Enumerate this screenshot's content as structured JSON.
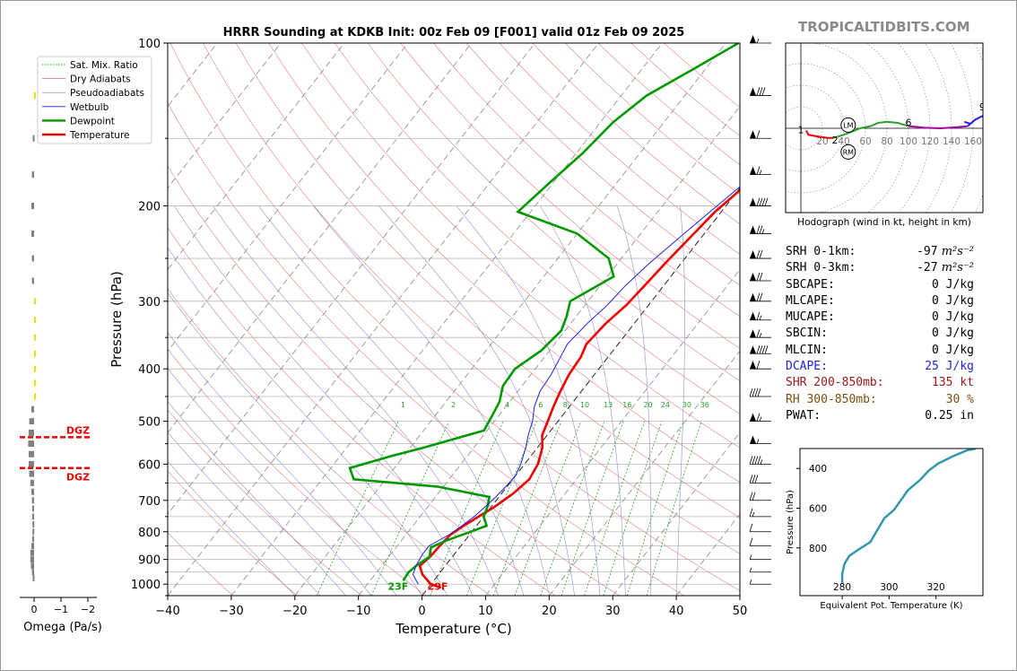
{
  "chart_data": [
    {
      "type": "skew-t",
      "title": "HRRR Sounding at KDKB Init: 00z Feb 09 [F001] valid 01z Feb 09 2025",
      "xlabel": "Temperature (°C)",
      "ylabel": "Pressure (hPa)",
      "xlim": [
        -40,
        50
      ],
      "ylim": [
        1050,
        100
      ],
      "log_y": true,
      "grid": true,
      "xticks": [
        -40,
        -30,
        -20,
        -10,
        0,
        10,
        20,
        30,
        40,
        50
      ],
      "yticks": [
        100,
        200,
        300,
        400,
        500,
        600,
        700,
        800,
        900,
        1000
      ],
      "legend": {
        "placement": "top-left",
        "entries": [
          {
            "name": "Sat. Mix. Ratio",
            "color": "#2ca02c",
            "style": "dotted"
          },
          {
            "name": "Dry Adiabats",
            "color": "#e08080",
            "style": "solid"
          },
          {
            "name": "Pseudoadiabats",
            "color": "#a0a0a0",
            "style": "solid"
          },
          {
            "name": "Wetbulb",
            "color": "#1f1fe0",
            "style": "solid"
          },
          {
            "name": "Dewpoint",
            "color": "#009900",
            "style": "solid"
          },
          {
            "name": "Temperature",
            "color": "#ee0000",
            "style": "solid"
          }
        ]
      },
      "mixing_ratio_labels": [
        "1",
        "2",
        "4",
        "6",
        "8",
        "10",
        "13",
        "16",
        "20",
        "24",
        "30",
        "36"
      ],
      "series": [
        {
          "name": "Temperature",
          "points": [
            [
              1015,
              2
            ],
            [
              1000,
              0
            ],
            [
              960,
              -2.5
            ],
            [
              925,
              -4
            ],
            [
              890,
              -3.5
            ],
            [
              850,
              -3.3
            ],
            [
              810,
              -3
            ],
            [
              780,
              -2
            ],
            [
              750,
              -0.8
            ],
            [
              720,
              0.5
            ],
            [
              680,
              1.8
            ],
            [
              640,
              2.6
            ],
            [
              600,
              2.1
            ],
            [
              560,
              0.8
            ],
            [
              530,
              -0.8
            ],
            [
              500,
              -1.6
            ],
            [
              470,
              -2.5
            ],
            [
              440,
              -3.3
            ],
            [
              410,
              -4
            ],
            [
              380,
              -4.3
            ],
            [
              360,
              -5
            ],
            [
              330,
              -4.5
            ],
            [
              305,
              -3.5
            ],
            [
              280,
              -3
            ],
            [
              255,
              -2.5
            ],
            [
              230,
              -1.8
            ],
            [
              205,
              -1
            ],
            [
              180,
              0.8
            ],
            [
              160,
              1.5
            ],
            [
              140,
              2.7
            ],
            [
              125,
              4
            ],
            [
              112,
              6.3
            ],
            [
              100,
              8.5
            ]
          ]
        },
        {
          "name": "Dewpoint",
          "points": [
            [
              985,
              -4.8
            ],
            [
              950,
              -5
            ],
            [
              920,
              -4.5
            ],
            [
              890,
              -3.6
            ],
            [
              855,
              -4.5
            ],
            [
              830,
              -2.9
            ],
            [
              800,
              -0.2
            ],
            [
              780,
              1.6
            ],
            [
              750,
              0
            ],
            [
              720,
              -0.6
            ],
            [
              690,
              -1.5
            ],
            [
              660,
              -11
            ],
            [
              640,
              -25
            ],
            [
              610,
              -27
            ],
            [
              580,
              -22
            ],
            [
              560,
              -18
            ],
            [
              520,
              -10.5
            ],
            [
              490,
              -11
            ],
            [
              460,
              -11.6
            ],
            [
              430,
              -13
            ],
            [
              400,
              -13.2
            ],
            [
              370,
              -11.3
            ],
            [
              340,
              -10.6
            ],
            [
              320,
              -11.5
            ],
            [
              300,
              -12.8
            ],
            [
              270,
              -9
            ],
            [
              250,
              -12
            ],
            [
              225,
              -20
            ],
            [
              205,
              -32
            ],
            [
              180,
              -30.5
            ],
            [
              160,
              -29
            ],
            [
              140,
              -28
            ],
            [
              125,
              -26
            ],
            [
              112,
              -22
            ],
            [
              100,
              -18
            ]
          ]
        },
        {
          "name": "Wetbulb",
          "points": [
            [
              1000,
              -2
            ],
            [
              960,
              -4
            ],
            [
              925,
              -4.6
            ],
            [
              880,
              -5
            ],
            [
              850,
              -5
            ],
            [
              810,
              -3.2
            ],
            [
              780,
              -2.3
            ],
            [
              750,
              -1.5
            ],
            [
              720,
              -1
            ],
            [
              690,
              -0.5
            ],
            [
              660,
              -0.2
            ],
            [
              630,
              0
            ],
            [
              600,
              -0.6
            ],
            [
              560,
              -1.8
            ],
            [
              530,
              -3
            ],
            [
              500,
              -4
            ],
            [
              470,
              -5.5
            ],
            [
              440,
              -6.5
            ],
            [
              410,
              -6.8
            ],
            [
              380,
              -7.5
            ],
            [
              360,
              -8
            ],
            [
              330,
              -7.4
            ],
            [
              305,
              -6.5
            ],
            [
              280,
              -6
            ],
            [
              255,
              -5
            ],
            [
              230,
              -3.5
            ],
            [
              205,
              -1.8
            ],
            [
              180,
              0.2
            ],
            [
              160,
              1.2
            ],
            [
              140,
              2.5
            ],
            [
              125,
              3.8
            ],
            [
              112,
              6
            ],
            [
              100,
              8
            ]
          ]
        }
      ],
      "annotations": [
        {
          "text": "23F",
          "color": "#009900"
        },
        {
          "text": "29F",
          "color": "#ee0000"
        }
      ],
      "wind_barbs_kt": [
        [
          100,
          55
        ],
        [
          125,
          80
        ],
        [
          150,
          60
        ],
        [
          175,
          65
        ],
        [
          200,
          90
        ],
        [
          225,
          75
        ],
        [
          250,
          70
        ],
        [
          275,
          70
        ],
        [
          300,
          70
        ],
        [
          325,
          65
        ],
        [
          350,
          65
        ],
        [
          375,
          90
        ],
        [
          400,
          60
        ],
        [
          450,
          40
        ],
        [
          500,
          65
        ],
        [
          550,
          55
        ],
        [
          600,
          45
        ],
        [
          650,
          30
        ],
        [
          700,
          20
        ],
        [
          750,
          15
        ],
        [
          800,
          10
        ],
        [
          850,
          10
        ],
        [
          900,
          8
        ],
        [
          950,
          5
        ],
        [
          1000,
          5
        ]
      ]
    },
    {
      "type": "bar",
      "name": "omega-profile",
      "xlabel": "Omega (Pa/s)",
      "xticks": [
        "0",
        "−1",
        "−2"
      ],
      "dgz_label": "DGZ",
      "dgz_bounds_hpa": [
        535,
        610
      ],
      "bars": [
        {
          "p": 125,
          "w": -0.02,
          "c": "#e8e000"
        },
        {
          "p": 150,
          "w": 0.05,
          "c": "#808080"
        },
        {
          "p": 175,
          "w": 0.08,
          "c": "#808080"
        },
        {
          "p": 200,
          "w": 0.1,
          "c": "#808080"
        },
        {
          "p": 225,
          "w": 0.1,
          "c": "#808080"
        },
        {
          "p": 250,
          "w": 0.08,
          "c": "#808080"
        },
        {
          "p": 275,
          "w": 0.08,
          "c": "#808080"
        },
        {
          "p": 300,
          "w": -0.03,
          "c": "#e8e000"
        },
        {
          "p": 325,
          "w": -0.05,
          "c": "#e8e000"
        },
        {
          "p": 350,
          "w": -0.04,
          "c": "#e8e000"
        },
        {
          "p": 375,
          "w": -0.04,
          "c": "#e8e000"
        },
        {
          "p": 400,
          "w": -0.07,
          "c": "#e8e000"
        },
        {
          "p": 425,
          "w": -0.03,
          "c": "#e8e000"
        },
        {
          "p": 450,
          "w": -0.02,
          "c": "#e8e000"
        },
        {
          "p": 475,
          "w": 0.1,
          "c": "#808080"
        },
        {
          "p": 500,
          "w": 0.18,
          "c": "#808080"
        },
        {
          "p": 525,
          "w": 0.2,
          "c": "#808080"
        },
        {
          "p": 550,
          "w": 0.22,
          "c": "#808080"
        },
        {
          "p": 575,
          "w": 0.2,
          "c": "#808080"
        },
        {
          "p": 600,
          "w": 0.2,
          "c": "#808080"
        },
        {
          "p": 625,
          "w": 0.18,
          "c": "#808080"
        },
        {
          "p": 650,
          "w": 0.14,
          "c": "#808080"
        },
        {
          "p": 675,
          "w": 0.1,
          "c": "#808080"
        },
        {
          "p": 700,
          "w": 0.08,
          "c": "#808080"
        },
        {
          "p": 725,
          "w": 0.07,
          "c": "#808080"
        },
        {
          "p": 750,
          "w": 0.07,
          "c": "#808080"
        },
        {
          "p": 775,
          "w": 0.06,
          "c": "#808080"
        },
        {
          "p": 800,
          "w": 0.06,
          "c": "#808080"
        },
        {
          "p": 825,
          "w": 0.07,
          "c": "#808080"
        },
        {
          "p": 850,
          "w": 0.1,
          "c": "#808080"
        },
        {
          "p": 875,
          "w": 0.14,
          "c": "#808080"
        },
        {
          "p": 900,
          "w": 0.14,
          "c": "#808080"
        },
        {
          "p": 925,
          "w": 0.12,
          "c": "#808080"
        },
        {
          "p": 950,
          "w": 0.08,
          "c": "#808080"
        },
        {
          "p": 975,
          "w": 0.05,
          "c": "#808080"
        }
      ]
    },
    {
      "type": "line",
      "name": "hodograph",
      "xlabel": "Hodograph (wind in kt, height in km)",
      "ring_labels": [
        "20",
        "40",
        "60",
        "80",
        "100",
        "120",
        "140",
        "160"
      ],
      "height_labels": [
        "1",
        "2",
        "3",
        "6",
        "9"
      ],
      "storm_motion_labels": [
        "LM",
        "RM"
      ],
      "segments": [
        {
          "color": "#ee0000",
          "points": [
            [
              5,
              -2
            ],
            [
              7,
              -6
            ],
            [
              12,
              -7
            ],
            [
              18,
              -8
            ],
            [
              25,
              -9
            ],
            [
              30,
              -9
            ]
          ]
        },
        {
          "color": "#2ca02c",
          "points": [
            [
              30,
              -9
            ],
            [
              40,
              -6
            ],
            [
              48,
              -3
            ],
            [
              55,
              0
            ],
            [
              65,
              2
            ],
            [
              72,
              5
            ],
            [
              80,
              6
            ],
            [
              90,
              5
            ],
            [
              100,
              2
            ]
          ]
        },
        {
          "color": "#aa00aa",
          "points": [
            [
              100,
              2
            ],
            [
              115,
              0.5
            ],
            [
              130,
              0
            ],
            [
              145,
              1
            ],
            [
              155,
              2
            ]
          ]
        },
        {
          "color": "#1f1fe0",
          "points": [
            [
              155,
              2
            ],
            [
              162,
              8
            ],
            [
              170,
              12
            ],
            [
              172,
              14
            ]
          ]
        }
      ],
      "extra_blue": [
        [
          152,
          6
        ],
        [
          158,
          4
        ]
      ]
    },
    {
      "type": "line",
      "name": "theta-e-profile",
      "xlabel": "Equivalent Pot. Temperature (K)",
      "ylabel": "Pressure (hPa)",
      "xticks": [
        280,
        300,
        320
      ],
      "yticks": [
        400,
        600,
        800
      ],
      "color": "#3399aa",
      "points": [
        [
          280,
          980
        ],
        [
          280,
          930
        ],
        [
          281,
          880
        ],
        [
          283,
          840
        ],
        [
          288,
          800
        ],
        [
          292,
          770
        ],
        [
          294,
          730
        ],
        [
          296,
          690
        ],
        [
          298,
          650
        ],
        [
          302,
          610
        ],
        [
          305,
          560
        ],
        [
          308,
          510
        ],
        [
          313,
          460
        ],
        [
          317,
          410
        ],
        [
          321,
          375
        ],
        [
          327,
          340
        ],
        [
          333,
          310
        ],
        [
          337,
          300
        ]
      ]
    }
  ],
  "brand": "TROPICALTIDBITS.COM",
  "stats": [
    {
      "label": "SRH 0-1km:",
      "value": "-97",
      "unit": "m²s⁻²",
      "cls": ""
    },
    {
      "label": "SRH 0-3km:",
      "value": "-27",
      "unit": "m²s⁻²",
      "cls": ""
    },
    {
      "label": "SBCAPE:",
      "value": "0 J/kg",
      "unit": "",
      "cls": ""
    },
    {
      "label": "MLCAPE:",
      "value": "0 J/kg",
      "unit": "",
      "cls": ""
    },
    {
      "label": "MUCAPE:",
      "value": "0 J/kg",
      "unit": "",
      "cls": ""
    },
    {
      "label": "SBCIN:",
      "value": "0 J/kg",
      "unit": "",
      "cls": ""
    },
    {
      "label": "MLCIN:",
      "value": "0 J/kg",
      "unit": "",
      "cls": ""
    },
    {
      "label": "DCAPE:",
      "value": "25 J/kg",
      "unit": "",
      "cls": "k1"
    },
    {
      "label": "SHR 200-850mb:",
      "value": "135 kt",
      "unit": "",
      "cls": "k2"
    },
    {
      "label": "RH 300-850mb:",
      "value": "30 %",
      "unit": "",
      "cls": "k3"
    },
    {
      "label": "PWAT:",
      "value": "0.25 in",
      "unit": "",
      "cls": ""
    }
  ]
}
